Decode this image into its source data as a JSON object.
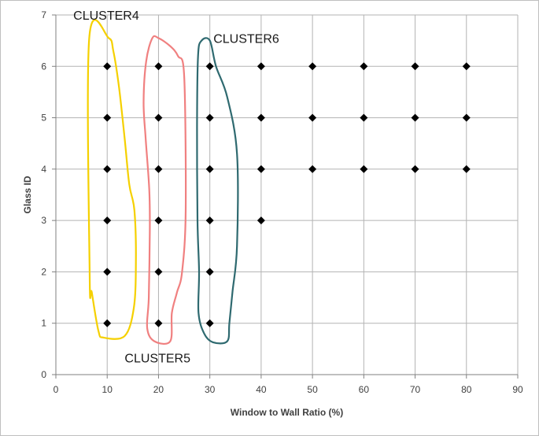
{
  "chart_data": {
    "type": "scatter",
    "xlabel": "Window to Wall Ratio (%)",
    "ylabel": "Glass ID",
    "xlim": [
      0,
      90
    ],
    "ylim": [
      0,
      7
    ],
    "x_ticks": [
      0,
      10,
      20,
      30,
      40,
      50,
      60,
      70,
      80,
      90
    ],
    "y_ticks": [
      0,
      1,
      2,
      3,
      4,
      5,
      6,
      7
    ],
    "grid": true,
    "marker": "diamond",
    "marker_color": "#000000",
    "points": [
      [
        10,
        1
      ],
      [
        10,
        2
      ],
      [
        10,
        3
      ],
      [
        10,
        4
      ],
      [
        10,
        5
      ],
      [
        10,
        6
      ],
      [
        20,
        1
      ],
      [
        20,
        2
      ],
      [
        20,
        3
      ],
      [
        20,
        4
      ],
      [
        20,
        5
      ],
      [
        20,
        6
      ],
      [
        30,
        1
      ],
      [
        30,
        2
      ],
      [
        30,
        3
      ],
      [
        30,
        4
      ],
      [
        30,
        5
      ],
      [
        30,
        6
      ],
      [
        40,
        3
      ],
      [
        40,
        4
      ],
      [
        40,
        5
      ],
      [
        40,
        6
      ],
      [
        50,
        4
      ],
      [
        50,
        5
      ],
      [
        50,
        6
      ],
      [
        60,
        4
      ],
      [
        60,
        5
      ],
      [
        60,
        6
      ],
      [
        70,
        4
      ],
      [
        70,
        5
      ],
      [
        70,
        6
      ],
      [
        80,
        4
      ],
      [
        80,
        5
      ],
      [
        80,
        6
      ]
    ],
    "clusters": [
      {
        "label": "CLUSTER4",
        "color": "#f5d000",
        "outline": [
          [
            6.5,
            6.55
          ],
          [
            10.3,
            6.55
          ],
          [
            11.2,
            6.3
          ],
          [
            12.3,
            5.6
          ],
          [
            13.4,
            4.6
          ],
          [
            14.3,
            3.7
          ],
          [
            15.3,
            3.2
          ],
          [
            15.6,
            2.2
          ],
          [
            15.2,
            1.3
          ],
          [
            13.4,
            0.75
          ],
          [
            9.3,
            0.72
          ],
          [
            8.3,
            0.85
          ],
          [
            7,
            1.6
          ],
          [
            6.6,
            1.9
          ]
        ],
        "label_anchor": [
          3.4,
          7
        ]
      },
      {
        "label": "CLUSTER5",
        "color": "#f08080",
        "outline": [
          [
            18.8,
            6.55
          ],
          [
            20,
            6.55
          ],
          [
            22.2,
            6.4
          ],
          [
            23.8,
            6.2
          ],
          [
            25,
            5.8
          ],
          [
            25.3,
            3.2
          ],
          [
            24.6,
            2
          ],
          [
            23.6,
            1.6
          ],
          [
            22.6,
            1.2
          ],
          [
            22.3,
            0.65
          ],
          [
            19.2,
            0.65
          ],
          [
            17.8,
            0.9
          ],
          [
            18.1,
            1.5
          ],
          [
            18.3,
            2.8
          ],
          [
            18.2,
            3.6
          ],
          [
            17.5,
            4.6
          ],
          [
            17.1,
            5.3
          ],
          [
            17.6,
            6.1
          ]
        ],
        "label_anchor": [
          13.4,
          0.33
        ]
      },
      {
        "label": "CLUSTER6",
        "color": "#2f6a70",
        "outline": [
          [
            28.4,
            6.5
          ],
          [
            30,
            6.5
          ],
          [
            31.2,
            6
          ],
          [
            33.4,
            5.4
          ],
          [
            35.3,
            4.3
          ],
          [
            35.3,
            2.5
          ],
          [
            34.4,
            1.6
          ],
          [
            33.8,
            1
          ],
          [
            33.4,
            0.65
          ],
          [
            30.6,
            0.63
          ],
          [
            28.9,
            0.8
          ],
          [
            27.8,
            1.2
          ],
          [
            27.9,
            2
          ],
          [
            27.6,
            3
          ],
          [
            27.5,
            4.8
          ],
          [
            27.7,
            6.2
          ]
        ],
        "label_anchor": [
          30.7,
          6.55
        ]
      }
    ]
  }
}
